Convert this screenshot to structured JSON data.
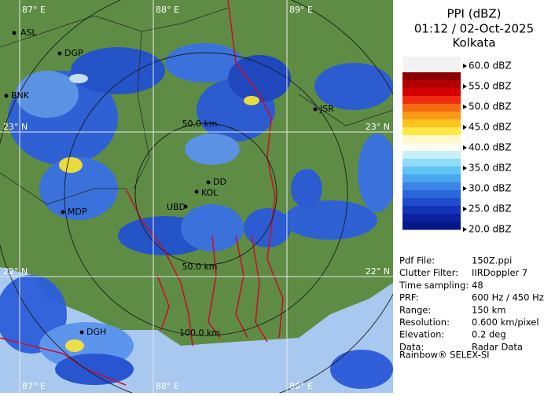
{
  "header": {
    "product": "PPI (dBZ)",
    "time": "01:12 / 02-Oct-2025",
    "site": "Kolkata"
  },
  "legend": {
    "labels": [
      "60.0 dBZ",
      "55.0 dBZ",
      "50.0 dBZ",
      "45.0 dBZ",
      "40.0 dBZ",
      "35.0 dBZ",
      "30.0 dBZ",
      "25.0 dBZ",
      "20.0 dBZ"
    ]
  },
  "info": [
    {
      "label": "Pdf File:",
      "value": "150Z.ppi"
    },
    {
      "label": "Clutter Filter:",
      "value": "IIRDoppler 7"
    },
    {
      "label": "Time sampling:",
      "value": "48"
    },
    {
      "label": "PRF:",
      "value": "600 Hz / 450 Hz"
    },
    {
      "label": "Range:",
      "value": "150 km"
    },
    {
      "label": "Resolution:",
      "value": "0.600 km/pixel"
    },
    {
      "label": "Elevation:",
      "value": "0.2 deg"
    },
    {
      "label": "Data:",
      "value": "Radar Data"
    }
  ],
  "footer": "Rainbow® SELEX-SI",
  "map": {
    "grid_labels": {
      "lon_88_top": "88° E",
      "lon_89_top": "89° E",
      "lon_87_top": "87° E",
      "lon_88_bottom": "88° E",
      "lon_89_bottom": "89° E",
      "lon_87_bottom": "87° E",
      "lat_23_left": "23° N",
      "lat_23_right": "23° N",
      "lat_22_left": "22° N",
      "lat_22_right": "22° N"
    },
    "ring_labels": [
      "50.0 km",
      "50.0 km",
      "100.0 km"
    ],
    "stations": [
      "ASL",
      "DGP",
      "BNK",
      "JSR",
      "DD",
      "KOL",
      "UBD",
      "MDP",
      "DGH"
    ]
  }
}
